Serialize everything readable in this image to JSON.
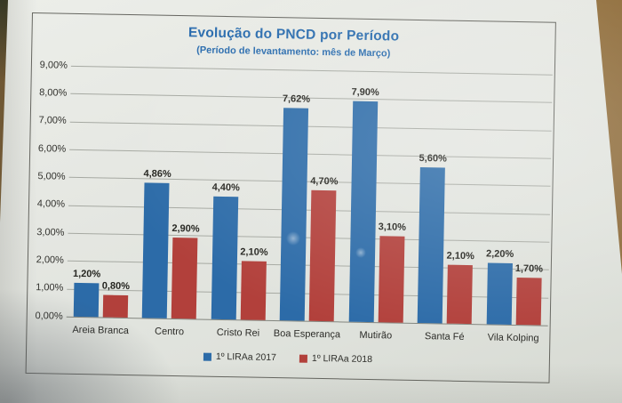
{
  "chart_data": {
    "type": "bar",
    "title": "Evolução do PNCD por Período",
    "subtitle": "(Período de levantamento: mês de Março)",
    "title_color": "#2a6cae",
    "categories": [
      "Areia Branca",
      "Centro",
      "Cristo Rei",
      "Boa Esperança",
      "Mutirão",
      "Santa Fé",
      "Vila Kolping"
    ],
    "series": [
      {
        "name": "1º LIRAa 2017",
        "color": "#2c6ba8",
        "values": [
          1.2,
          4.86,
          4.4,
          7.62,
          7.9,
          5.6,
          2.2
        ],
        "labels": [
          "1,20%",
          "4,86%",
          "4,40%",
          "7,62%",
          "7,90%",
          "5,60%",
          "2,20%"
        ]
      },
      {
        "name": "1º LIRAa 2018",
        "color": "#b2403b",
        "values": [
          0.8,
          2.9,
          2.1,
          4.7,
          3.1,
          2.1,
          1.7
        ],
        "labels": [
          "0,80%",
          "2,90%",
          "2,10%",
          "4,70%",
          "3,10%",
          "2,10%",
          "1,70%"
        ]
      }
    ],
    "y_axis": {
      "min": 0,
      "max": 9,
      "step": 1,
      "tick_labels": [
        "0,00%",
        "1,00%",
        "2,00%",
        "3,00%",
        "4,00%",
        "5,00%",
        "6,00%",
        "7,00%",
        "8,00%",
        "9,00%"
      ]
    },
    "grid": true,
    "legend_position": "bottom"
  }
}
